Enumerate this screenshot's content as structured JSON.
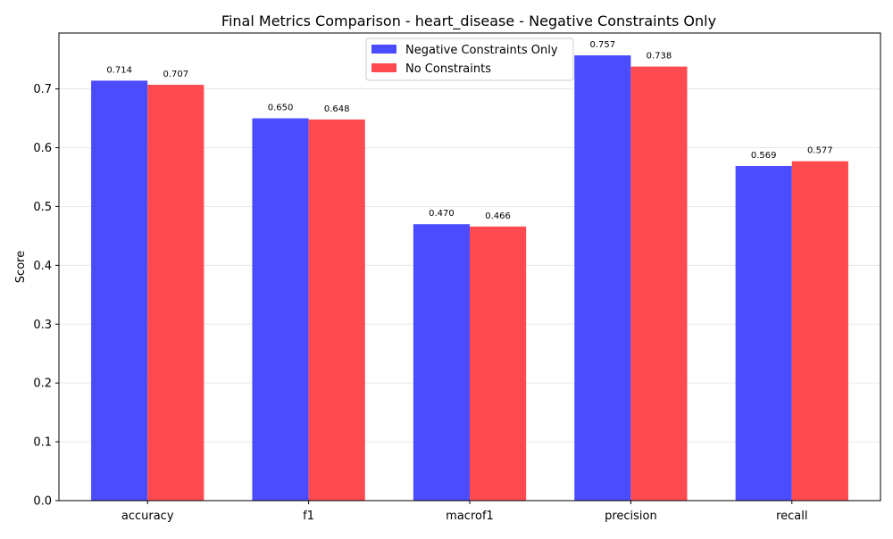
{
  "chart_data": {
    "type": "bar",
    "title": "Final Metrics Comparison - heart_disease - Negative Constraints Only",
    "xlabel": "",
    "ylabel": "Score",
    "categories": [
      "accuracy",
      "f1",
      "macrof1",
      "precision",
      "recall"
    ],
    "series": [
      {
        "name": "Negative Constraints Only",
        "color": "#4b4bff",
        "values": [
          0.714,
          0.65,
          0.47,
          0.757,
          0.569
        ],
        "labels": [
          "0.714",
          "0.650",
          "0.470",
          "0.757",
          "0.569"
        ]
      },
      {
        "name": "No Constraints",
        "color": "#ff4b4f",
        "values": [
          0.707,
          0.648,
          0.466,
          0.738,
          0.577
        ],
        "labels": [
          "0.707",
          "0.648",
          "0.466",
          "0.738",
          "0.577"
        ]
      }
    ],
    "ylim": [
      0,
      0.795
    ],
    "yticks": [
      0.0,
      0.1,
      0.2,
      0.3,
      0.4,
      0.5,
      0.6,
      0.7
    ],
    "ytick_labels": [
      "0.0",
      "0.1",
      "0.2",
      "0.3",
      "0.4",
      "0.5",
      "0.6",
      "0.7"
    ],
    "grid": "horizontal",
    "legend_position": "top-center"
  }
}
